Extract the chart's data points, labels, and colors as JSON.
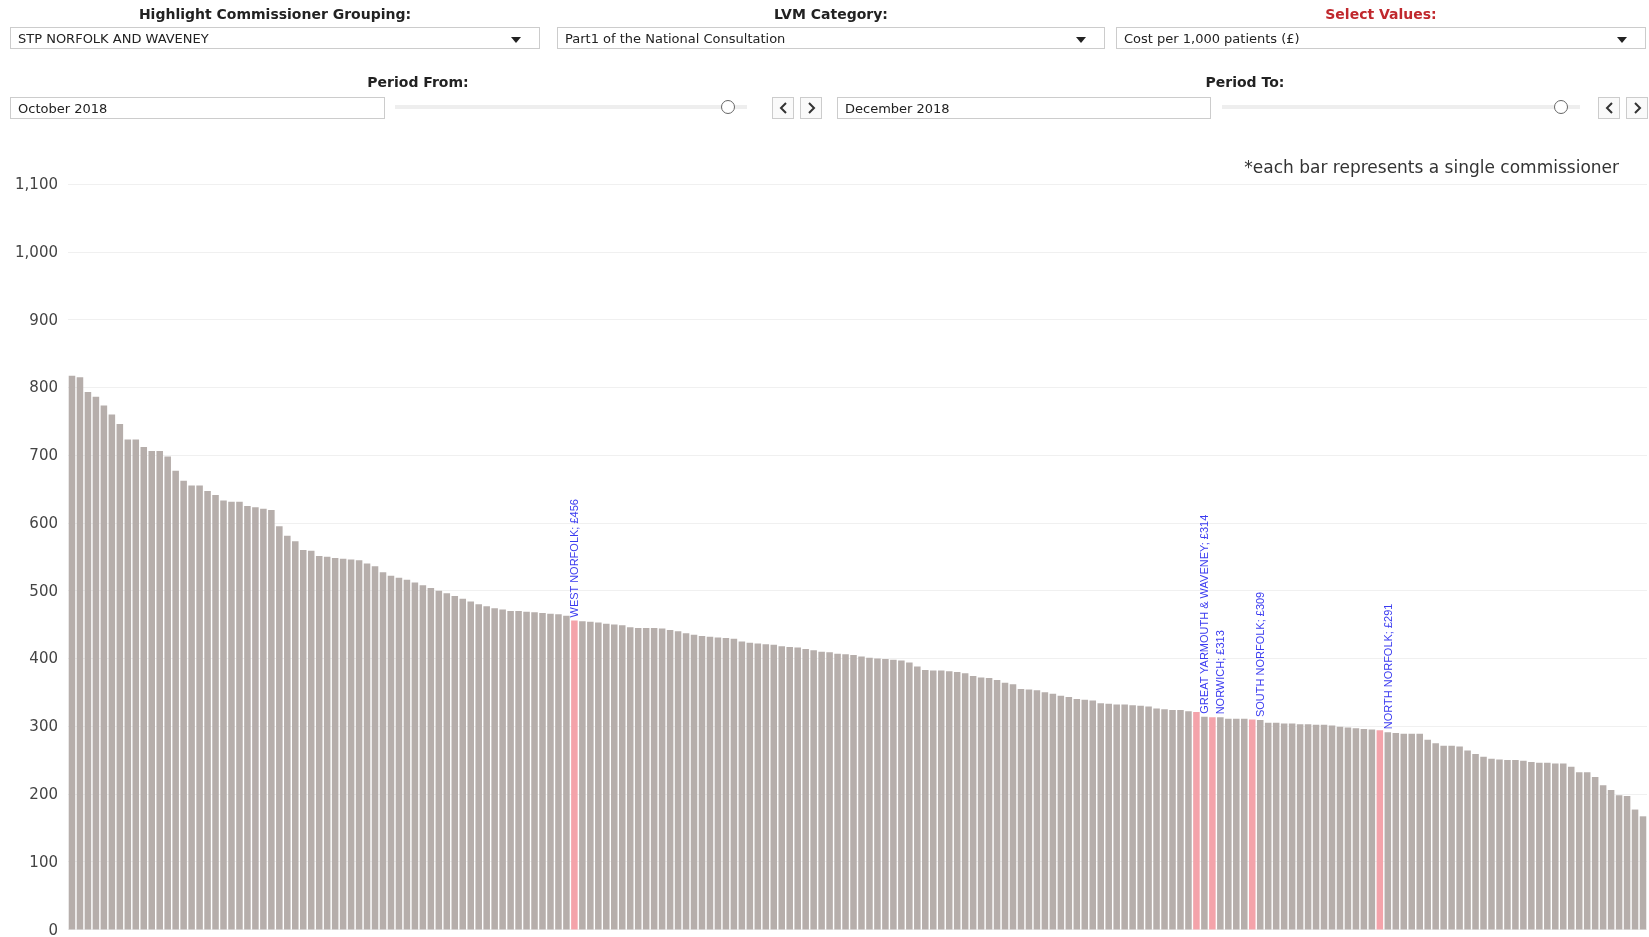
{
  "chart_data": {
    "type": "bar",
    "categories": [
      null,
      null,
      null,
      null,
      null,
      null,
      null,
      null,
      null,
      null,
      null,
      null,
      null,
      null,
      null,
      null,
      null,
      null,
      null,
      null,
      null,
      null,
      null,
      null,
      null,
      null,
      null,
      null,
      null,
      null,
      null,
      null,
      null,
      null,
      null,
      null,
      null,
      null,
      null,
      null,
      null,
      null,
      null,
      null,
      null,
      null,
      null,
      null,
      null,
      null,
      null,
      null,
      null,
      null,
      null,
      null,
      null,
      null,
      null,
      null,
      null,
      null,
      null,
      null,
      null,
      null,
      null,
      null,
      null,
      null,
      null,
      null,
      null,
      null,
      null,
      null,
      null,
      null,
      null,
      null,
      null,
      null,
      null,
      null,
      null,
      null,
      null,
      null,
      null,
      null,
      null,
      null,
      null,
      null,
      null,
      null,
      null,
      null,
      null,
      null,
      null,
      null,
      null,
      null,
      null,
      null,
      null,
      null,
      null,
      null,
      null,
      null,
      null,
      null,
      null,
      null,
      null,
      null,
      null,
      null,
      null,
      null,
      null,
      null,
      null,
      null,
      null,
      null,
      null,
      null,
      null,
      null,
      null,
      null,
      null,
      null,
      null,
      null,
      null,
      null,
      null,
      null,
      null,
      null,
      null,
      null,
      null,
      null,
      null,
      null,
      null,
      null,
      null,
      null,
      null,
      null,
      null,
      null,
      null,
      null,
      null,
      null,
      null,
      null,
      null,
      null,
      null,
      null,
      null,
      null,
      null,
      null,
      null,
      null,
      null,
      null,
      null,
      null,
      null,
      null,
      null,
      null,
      null,
      null,
      null,
      null,
      null,
      null,
      null,
      null,
      null,
      null,
      null,
      null,
      null,
      null,
      null,
      null
    ],
    "values": [
      817,
      815,
      793,
      786,
      773,
      760,
      746,
      723,
      723,
      712,
      706,
      706,
      698,
      677,
      662,
      655,
      655,
      647,
      641,
      633,
      631,
      631,
      625,
      623,
      621,
      619,
      595,
      581,
      573,
      560,
      559,
      551,
      550,
      548,
      547,
      546,
      545,
      540,
      536,
      527,
      522,
      519,
      516,
      512,
      508,
      504,
      500,
      496,
      492,
      488,
      484,
      480,
      477,
      474,
      472,
      470,
      470,
      469,
      468,
      467,
      466,
      465,
      463,
      456,
      455,
      454,
      453,
      451,
      450,
      449,
      446,
      445,
      445,
      445,
      444,
      442,
      440,
      437,
      435,
      433,
      432,
      431,
      430,
      429,
      425,
      423,
      422,
      421,
      420,
      418,
      417,
      416,
      414,
      412,
      410,
      409,
      407,
      406,
      405,
      403,
      401,
      400,
      399,
      398,
      397,
      394,
      388,
      383,
      382,
      382,
      381,
      380,
      378,
      374,
      372,
      371,
      368,
      364,
      362,
      355,
      354,
      353,
      350,
      348,
      345,
      343,
      340,
      339,
      338,
      334,
      333,
      332,
      332,
      331,
      330,
      329,
      326,
      325,
      324,
      324,
      322,
      321,
      314,
      313,
      313,
      311,
      311,
      311,
      310,
      309,
      305,
      305,
      304,
      304,
      303,
      303,
      302,
      302,
      301,
      299,
      298,
      297,
      296,
      295,
      294,
      291,
      290,
      289,
      289,
      289,
      280,
      275,
      271,
      271,
      270,
      264,
      259,
      255,
      252,
      251,
      250,
      250,
      249,
      247,
      246,
      246,
      245,
      245,
      240,
      232,
      232,
      225,
      213,
      206,
      198,
      197,
      177,
      167
    ],
    "colors": [
      "#b6aeab",
      "#b6aeab",
      "#b6aeab",
      "#b6aeab",
      "#b6aeab",
      "#b6aeab",
      "#b6aeab",
      "#b6aeab",
      "#b6aeab",
      "#b6aeab",
      "#b6aeab",
      "#b6aeab",
      "#b6aeab",
      "#b6aeab",
      "#b6aeab",
      "#b6aeab",
      "#b6aeab",
      "#b6aeab",
      "#b6aeab",
      "#b6aeab",
      "#b6aeab",
      "#b6aeab",
      "#b6aeab",
      "#b6aeab",
      "#b6aeab",
      "#b6aeab",
      "#b6aeab",
      "#b6aeab",
      "#b6aeab",
      "#b6aeab",
      "#b6aeab",
      "#b6aeab",
      "#b6aeab",
      "#b6aeab",
      "#b6aeab",
      "#b6aeab",
      "#b6aeab",
      "#b6aeab",
      "#b6aeab",
      "#b6aeab",
      "#b6aeab",
      "#b6aeab",
      "#b6aeab",
      "#b6aeab",
      "#b6aeab",
      "#b6aeab",
      "#b6aeab",
      "#b6aeab",
      "#b6aeab",
      "#b6aeab",
      "#b6aeab",
      "#b6aeab",
      "#b6aeab",
      "#b6aeab",
      "#b6aeab",
      "#b6aeab",
      "#b6aeab",
      "#b6aeab",
      "#b6aeab",
      "#b6aeab",
      "#b6aeab",
      "#b6aeab",
      "#b6aeab",
      "#f4a3aa",
      "#b6aeab",
      "#b6aeab",
      "#b6aeab",
      "#b6aeab",
      "#b6aeab",
      "#b6aeab",
      "#b6aeab",
      "#b6aeab",
      "#b6aeab",
      "#b6aeab",
      "#b6aeab",
      "#b6aeab",
      "#b6aeab",
      "#b6aeab",
      "#b6aeab",
      "#b6aeab",
      "#b6aeab",
      "#b6aeab",
      "#b6aeab",
      "#b6aeab",
      "#b6aeab",
      "#b6aeab",
      "#b6aeab",
      "#b6aeab",
      "#b6aeab",
      "#b6aeab",
      "#b6aeab",
      "#b6aeab",
      "#b6aeab",
      "#b6aeab",
      "#b6aeab",
      "#b6aeab",
      "#b6aeab",
      "#b6aeab",
      "#b6aeab",
      "#b6aeab",
      "#b6aeab",
      "#b6aeab",
      "#b6aeab",
      "#b6aeab",
      "#b6aeab",
      "#b6aeab",
      "#b6aeab",
      "#b6aeab",
      "#b6aeab",
      "#b6aeab",
      "#b6aeab",
      "#b6aeab",
      "#b6aeab",
      "#b6aeab",
      "#b6aeab",
      "#b6aeab",
      "#b6aeab",
      "#b6aeab",
      "#b6aeab",
      "#b6aeab",
      "#b6aeab",
      "#b6aeab",
      "#b6aeab",
      "#b6aeab",
      "#b6aeab",
      "#b6aeab",
      "#b6aeab",
      "#b6aeab",
      "#b6aeab",
      "#b6aeab",
      "#b6aeab",
      "#b6aeab",
      "#b6aeab",
      "#b6aeab",
      "#b6aeab",
      "#b6aeab",
      "#b6aeab",
      "#b6aeab",
      "#b6aeab",
      "#b6aeab",
      "#b6aeab",
      "#f4a3aa",
      "#b6aeab",
      "#f4a3aa",
      "#b6aeab",
      "#b6aeab",
      "#b6aeab",
      "#b6aeab",
      "#f4a3aa",
      "#b6aeab",
      "#b6aeab",
      "#b6aeab",
      "#b6aeab",
      "#b6aeab",
      "#b6aeab",
      "#b6aeab",
      "#b6aeab",
      "#b6aeab",
      "#b6aeab",
      "#b6aeab",
      "#b6aeab",
      "#b6aeab",
      "#b6aeab",
      "#b6aeab",
      "#f4a3aa",
      "#b6aeab",
      "#b6aeab",
      "#b6aeab",
      "#b6aeab",
      "#b6aeab",
      "#b6aeab",
      "#b6aeab",
      "#b6aeab",
      "#b6aeab",
      "#b6aeab",
      "#b6aeab",
      "#b6aeab",
      "#b6aeab",
      "#b6aeab",
      "#b6aeab",
      "#b6aeab",
      "#b6aeab",
      "#b6aeab",
      "#b6aeab",
      "#b6aeab",
      "#b6aeab",
      "#b6aeab",
      "#b6aeab",
      "#b6aeab",
      "#b6aeab",
      "#b6aeab",
      "#b6aeab",
      "#b6aeab",
      "#b6aeab",
      "#b6aeab",
      "#b6aeab",
      "#b6aeab",
      "#b6aeab"
    ],
    "value_labels": [
      null,
      null,
      null,
      null,
      null,
      null,
      null,
      null,
      null,
      null,
      null,
      null,
      null,
      null,
      null,
      null,
      null,
      null,
      null,
      null,
      null,
      null,
      null,
      null,
      null,
      null,
      null,
      null,
      null,
      null,
      null,
      null,
      null,
      null,
      null,
      null,
      null,
      null,
      null,
      null,
      null,
      null,
      null,
      null,
      null,
      null,
      null,
      null,
      null,
      null,
      null,
      null,
      null,
      null,
      null,
      null,
      null,
      null,
      null,
      null,
      null,
      null,
      null,
      "WEST NORFOLK; £456",
      null,
      null,
      null,
      null,
      null,
      null,
      null,
      null,
      null,
      null,
      null,
      null,
      null,
      null,
      null,
      null,
      null,
      null,
      null,
      null,
      null,
      null,
      null,
      null,
      null,
      null,
      null,
      null,
      null,
      null,
      null,
      null,
      null,
      null,
      null,
      null,
      null,
      null,
      null,
      null,
      null,
      null,
      null,
      null,
      null,
      null,
      null,
      null,
      null,
      null,
      null,
      null,
      null,
      null,
      null,
      null,
      null,
      null,
      null,
      null,
      null,
      null,
      null,
      null,
      null,
      null,
      null,
      null,
      null,
      null,
      null,
      null,
      null,
      null,
      null,
      null,
      null,
      null,
      "GREAT YARMOUTH & WAVENEY; £314",
      null,
      "NORWICH; £313",
      null,
      null,
      null,
      null,
      "SOUTH NORFOLK; £309",
      null,
      null,
      null,
      null,
      null,
      null,
      null,
      null,
      null,
      null,
      null,
      null,
      null,
      null,
      null,
      "NORTH NORFOLK; £291",
      null,
      null,
      null,
      null,
      null,
      null,
      null,
      null,
      null,
      null,
      null,
      null,
      null,
      null,
      null,
      null,
      null,
      null,
      null,
      null,
      null,
      null,
      null,
      null,
      null,
      null,
      null,
      null,
      null,
      null,
      null,
      null
    ],
    "ylim": [
      0,
      1100
    ],
    "yticks": [
      0,
      100,
      200,
      300,
      400,
      500,
      600,
      700,
      800,
      900,
      {
        "value": 1000,
        "label": "1,000"
      },
      {
        "value": 1100,
        "label": "1,100"
      }
    ],
    "grid": "y",
    "annotations": [
      "*each bar represents a single commissioner",
      "Highlight  Commissioner Grouping:",
      "STP NORFOLK AND WAVENEY",
      "LVM Category:",
      "Part1 of the National Consultation",
      "Select Values:",
      "Cost per 1,000 patients (£)",
      "Period From:",
      "October 2018",
      "Period To:",
      "December 2018"
    ]
  }
}
